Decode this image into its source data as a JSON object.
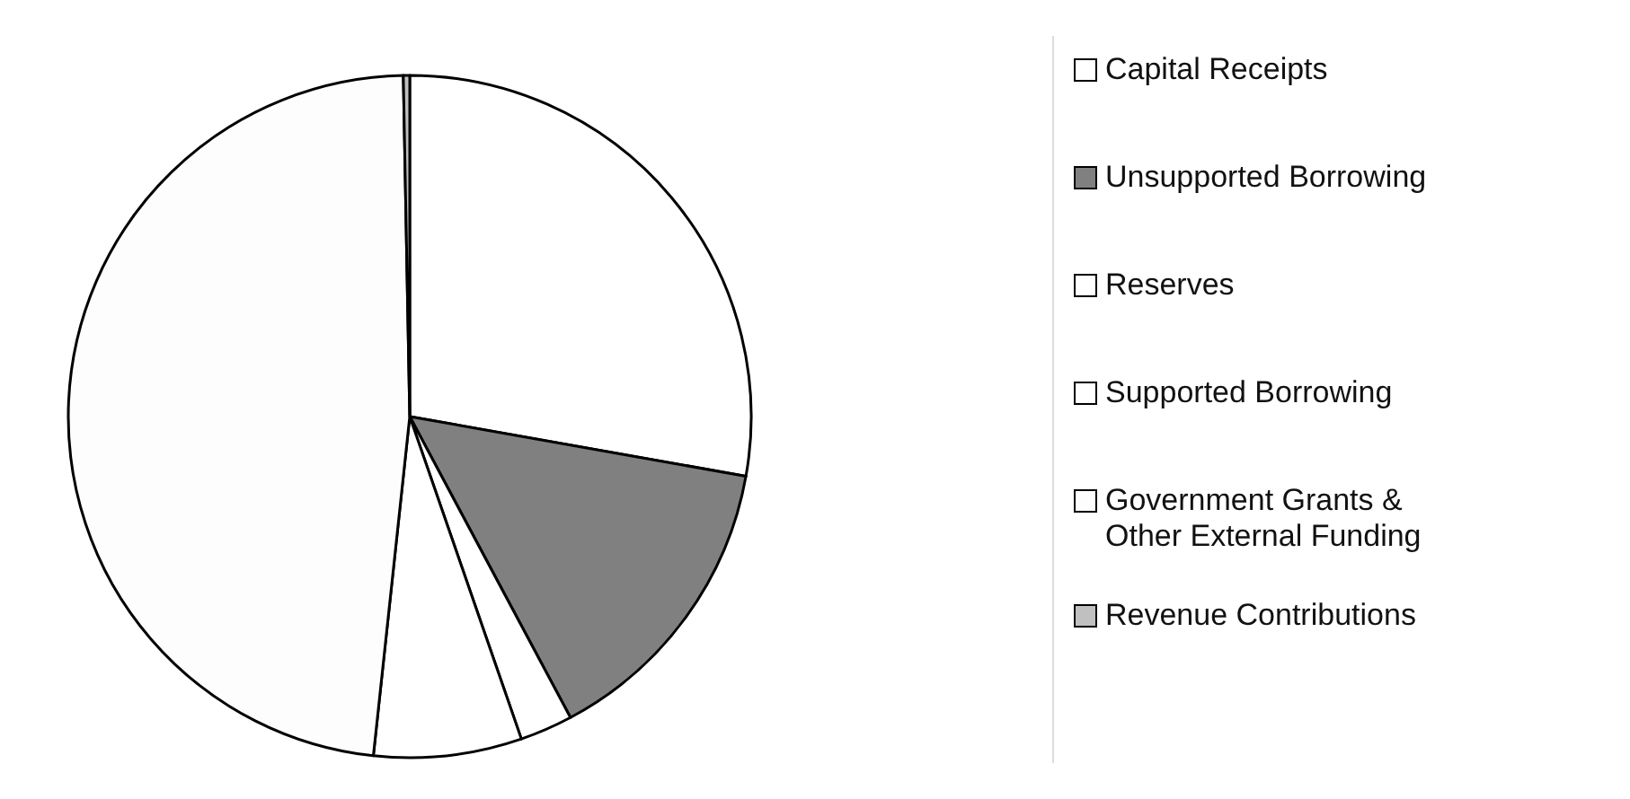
{
  "chart_data": {
    "type": "pie",
    "categories": [
      "Capital Receipts",
      "Unsupported Borrowing",
      "Reserves",
      "Supported Borrowing",
      "Government Grants & Other External Funding",
      "Revenue Contributions"
    ],
    "values": [
      27.8,
      14.4,
      2.5,
      7,
      48,
      0.3
    ],
    "colors": [
      "#ffffff",
      "#808080",
      "#ffffff",
      "#ffffff",
      "#fdfdfd",
      "#c0c0c0"
    ],
    "legend": "right"
  }
}
